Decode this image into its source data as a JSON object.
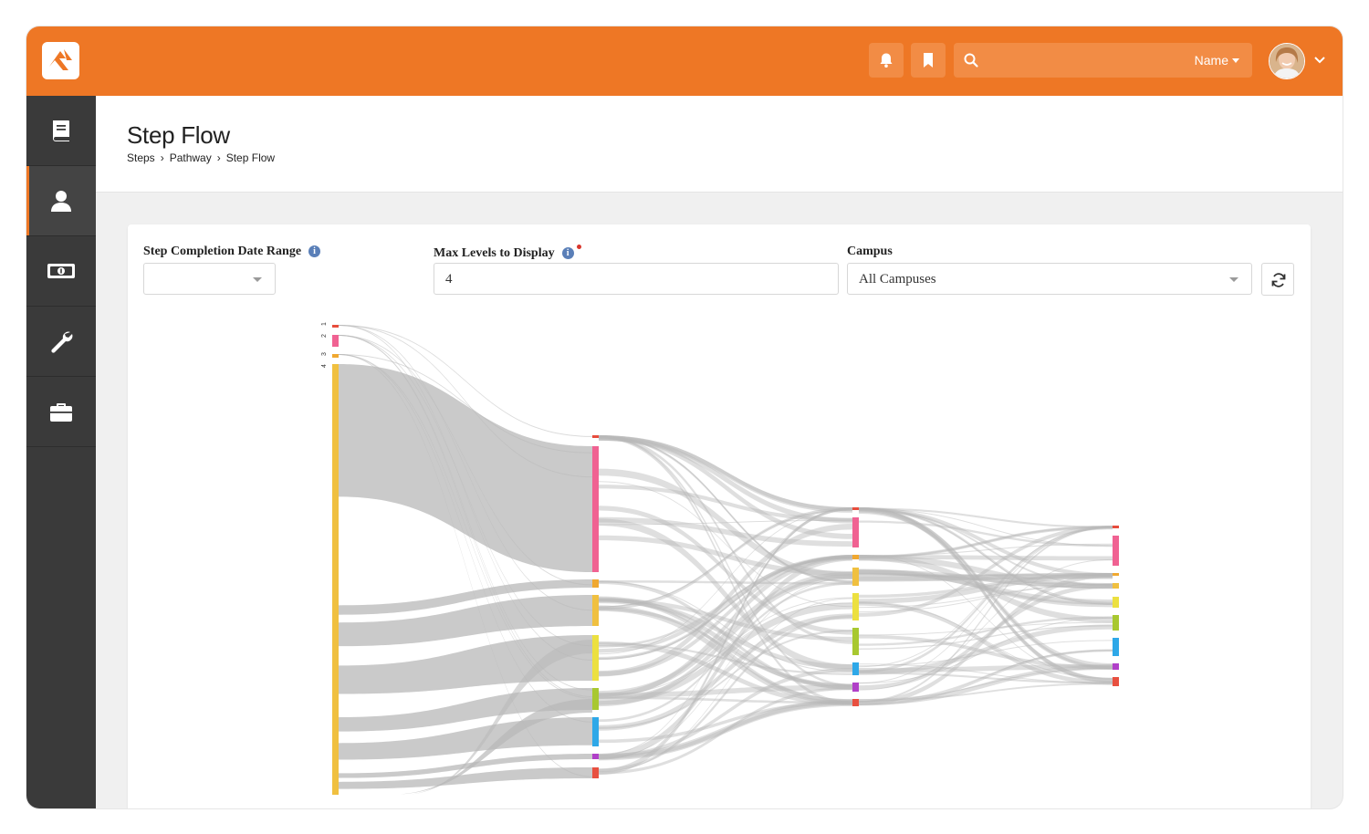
{
  "header": {
    "search_placeholder": "",
    "search_scope": "Name"
  },
  "sidebar": {
    "items": [
      {
        "name": "book-icon"
      },
      {
        "name": "person-icon",
        "active": true
      },
      {
        "name": "money-icon"
      },
      {
        "name": "wrench-icon"
      },
      {
        "name": "briefcase-icon"
      }
    ]
  },
  "page": {
    "title": "Step Flow",
    "breadcrumb": [
      "Steps",
      "Pathway",
      "Step Flow"
    ]
  },
  "filters": {
    "date_range_label": "Step Completion Date Range",
    "date_range_value": "",
    "max_levels_label": "Max Levels to Display",
    "max_levels_value": "4",
    "campus_label": "Campus",
    "campus_value": "All Campuses"
  },
  "colors": {
    "accent": "#ee7725",
    "sidebar": "#3a3a3a",
    "steps": [
      "#e74c3c",
      "#f06292",
      "#f0a830",
      "#f0c040",
      "#ece040",
      "#a8c830",
      "#2ea8e8",
      "#b040c8",
      "#e85040"
    ]
  },
  "chart_data": {
    "type": "sankey",
    "level_labels": [
      "1",
      "2",
      "3",
      "4"
    ]
  }
}
